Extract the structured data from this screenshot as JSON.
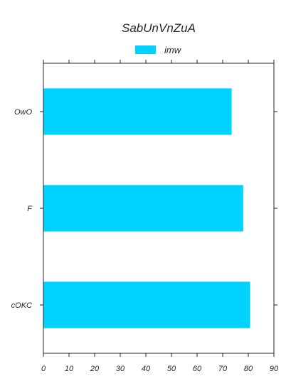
{
  "chart_data": {
    "type": "bar",
    "orientation": "horizontal",
    "title": "SabUnVnZuA",
    "xlabel": "",
    "ylabel": "",
    "categories": [
      "OwO",
      "F",
      "cOKC"
    ],
    "series": [
      {
        "name": "imw",
        "color": "#00d2ff",
        "values": [
          73.5,
          78,
          80.7
        ]
      }
    ],
    "xlim": [
      0,
      90
    ],
    "xticks": [
      0,
      10,
      20,
      30,
      40,
      50,
      60,
      70,
      80,
      90
    ],
    "grid": false,
    "legend_position": "top-center"
  }
}
